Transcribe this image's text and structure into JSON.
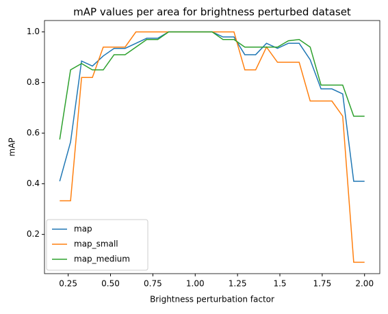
{
  "chart_data": {
    "type": "line",
    "title": "mAP values per area for brightness perturbed dataset",
    "xlabel": "Brightness perturbation factor",
    "ylabel": "mAP",
    "x": [
      0.2,
      0.264,
      0.329,
      0.393,
      0.457,
      0.521,
      0.586,
      0.65,
      0.714,
      0.779,
      0.843,
      0.907,
      0.971,
      1.036,
      1.1,
      1.164,
      1.229,
      1.293,
      1.357,
      1.421,
      1.486,
      1.55,
      1.614,
      1.679,
      1.743,
      1.807,
      1.871,
      1.936,
      2.0
    ],
    "series": [
      {
        "name": "map",
        "color": "#1f77b4",
        "values": [
          0.41,
          0.565,
          0.885,
          0.865,
          0.905,
          0.935,
          0.935,
          0.955,
          0.975,
          0.975,
          1.0,
          1.0,
          1.0,
          1.0,
          1.0,
          0.98,
          0.98,
          0.91,
          0.91,
          0.955,
          0.935,
          0.955,
          0.955,
          0.89,
          0.775,
          0.775,
          0.755,
          0.41,
          0.41
        ]
      },
      {
        "name": "map_small",
        "color": "#ff7f0e",
        "values": [
          0.333,
          0.333,
          0.82,
          0.82,
          0.94,
          0.94,
          0.94,
          1.0,
          1.0,
          1.0,
          1.0,
          1.0,
          1.0,
          1.0,
          1.0,
          1.0,
          1.0,
          0.85,
          0.85,
          0.94,
          0.88,
          0.88,
          0.88,
          0.727,
          0.727,
          0.727,
          0.667,
          0.09,
          0.09
        ]
      },
      {
        "name": "map_medium",
        "color": "#2ca02c",
        "values": [
          0.575,
          0.85,
          0.875,
          0.85,
          0.85,
          0.91,
          0.91,
          0.94,
          0.97,
          0.97,
          1.0,
          1.0,
          1.0,
          1.0,
          1.0,
          0.97,
          0.97,
          0.94,
          0.94,
          0.94,
          0.94,
          0.965,
          0.97,
          0.94,
          0.79,
          0.79,
          0.79,
          0.667,
          0.667
        ]
      }
    ],
    "xlim": [
      0.11,
      2.09
    ],
    "ylim": [
      0.045,
      1.045
    ],
    "xticks": [
      0.25,
      {
        "value": 0.5,
        "label": "0.50"
      },
      0.75,
      {
        "value": 1.0,
        "label": "1.00"
      },
      1.25,
      1.5,
      1.75,
      {
        "value": 2.0,
        "label": "2.00"
      }
    ],
    "yticks": [
      0.2,
      0.4,
      0.6,
      0.8,
      {
        "value": 1.0,
        "label": "1.0"
      }
    ],
    "legend": "lower left",
    "grid": false
  }
}
